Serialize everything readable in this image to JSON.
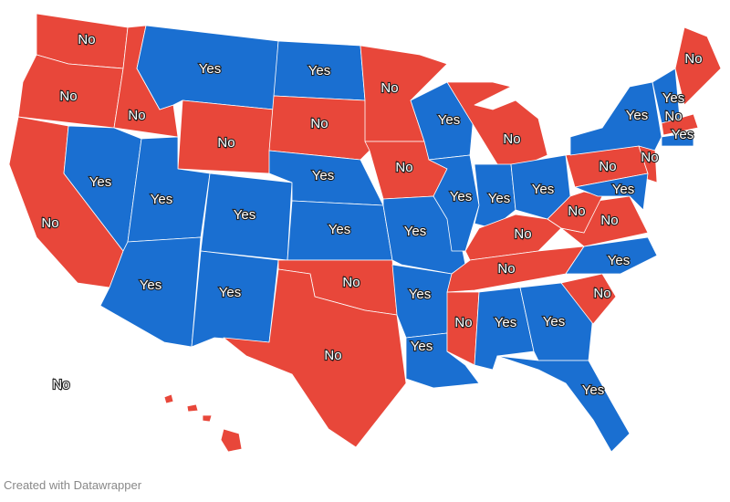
{
  "map": {
    "regions": [
      {
        "label": "No",
        "color": "#e8473a"
      },
      {
        "label": "No",
        "color": "#e8473a"
      },
      {
        "label": "No",
        "color": "#e8473a"
      },
      {
        "label": "No",
        "color": "#e8473a"
      },
      {
        "label": "Yes",
        "color": "#1a6fd1"
      },
      {
        "label": "Yes",
        "color": "#1a6fd1"
      },
      {
        "label": "No",
        "color": "#e8473a"
      },
      {
        "label": "Yes",
        "color": "#1a6fd1"
      },
      {
        "label": "Yes",
        "color": "#1a6fd1"
      },
      {
        "label": "Yes",
        "color": "#1a6fd1"
      },
      {
        "label": "Yes",
        "color": "#1a6fd1"
      },
      {
        "label": "Yes",
        "color": "#1a6fd1"
      },
      {
        "label": "No",
        "color": "#e8473a"
      },
      {
        "label": "Yes",
        "color": "#1a6fd1"
      },
      {
        "label": "Yes",
        "color": "#1a6fd1"
      },
      {
        "label": "No",
        "color": "#e8473a"
      },
      {
        "label": "No",
        "color": "#e8473a"
      },
      {
        "label": "No",
        "color": "#e8473a"
      },
      {
        "label": "No",
        "color": "#e8473a"
      },
      {
        "label": "Yes",
        "color": "#1a6fd1"
      },
      {
        "label": "Yes",
        "color": "#1a6fd1"
      },
      {
        "label": "Yes",
        "color": "#1a6fd1"
      },
      {
        "label": "Yes",
        "color": "#1a6fd1"
      },
      {
        "label": "Yes",
        "color": "#1a6fd1"
      },
      {
        "label": "No",
        "color": "#e8473a"
      },
      {
        "label": "No",
        "color": "#e8473a"
      },
      {
        "label": "Yes",
        "color": "#1a6fd1"
      },
      {
        "label": "Yes",
        "color": "#1a6fd1"
      },
      {
        "label": "No",
        "color": "#e8473a"
      },
      {
        "label": "No",
        "color": "#e8473a"
      },
      {
        "label": "Yes",
        "color": "#1a6fd1"
      },
      {
        "label": "Yes",
        "color": "#1a6fd1"
      },
      {
        "label": "Yes",
        "color": "#1a6fd1"
      },
      {
        "label": "No",
        "color": "#e8473a"
      },
      {
        "label": "Yes",
        "color": "#1a6fd1"
      },
      {
        "label": "No",
        "color": "#e8473a"
      },
      {
        "label": "No",
        "color": "#e8473a"
      },
      {
        "label": "No",
        "color": "#e8473a"
      },
      {
        "label": "Yes",
        "color": "#1a6fd1"
      },
      {
        "label": "No",
        "color": "#e8473a"
      },
      {
        "label": "Yes",
        "color": "#1a6fd1"
      },
      {
        "label": "Yes",
        "color": "#1a6fd1"
      },
      {
        "label": "No",
        "color": "#e8473a"
      },
      {
        "label": "No",
        "color": "#e8473a"
      },
      {
        "label": "Yes",
        "color": "#1a6fd1"
      },
      {
        "label": "No",
        "color": "#e8473a"
      }
    ],
    "credit": "Created with Datawrapper"
  }
}
